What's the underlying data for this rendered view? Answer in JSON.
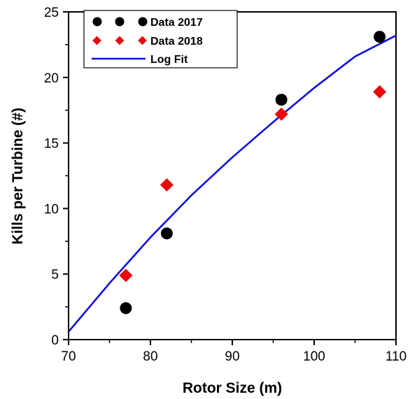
{
  "chart_data": {
    "type": "scatter",
    "xlabel": "Rotor Size (m)",
    "ylabel": "Kills per Turbine (#)",
    "xlim": [
      70,
      110
    ],
    "ylim": [
      0,
      25
    ],
    "x_ticks": [
      70,
      80,
      90,
      100,
      110
    ],
    "y_ticks": [
      0,
      5,
      10,
      15,
      20,
      25
    ],
    "grid": false,
    "legend_position": "top-left",
    "series": [
      {
        "name": "Data 2017",
        "marker": "circle",
        "color": "#000000",
        "x": [
          77,
          82,
          96,
          108
        ],
        "y": [
          2.4,
          8.1,
          18.3,
          23.1
        ]
      },
      {
        "name": "Data 2018",
        "marker": "diamond",
        "color": "#e8090b",
        "x": [
          77,
          82,
          96,
          108
        ],
        "y": [
          4.9,
          11.8,
          17.2,
          18.9
        ]
      },
      {
        "name": "Log Fit",
        "marker": "line",
        "color": "#1010e0",
        "x": [
          70,
          75,
          80,
          85,
          90,
          95,
          100,
          105,
          110
        ],
        "y": [
          0.6,
          4.3,
          7.8,
          11.0,
          13.9,
          16.6,
          19.2,
          21.6,
          23.2
        ]
      }
    ]
  }
}
